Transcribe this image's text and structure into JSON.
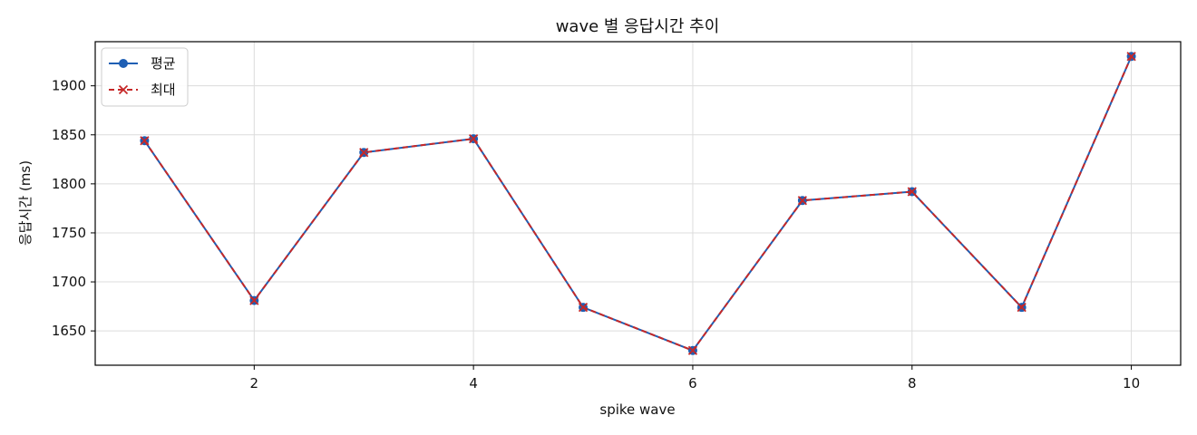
{
  "chart_data": {
    "type": "line",
    "title": "wave 별 응답시간 추이",
    "xlabel": "spike wave",
    "ylabel": "응답시간 (ms)",
    "x": [
      1,
      2,
      3,
      4,
      5,
      6,
      7,
      8,
      9,
      10
    ],
    "xlim": [
      0.55,
      10.45
    ],
    "ylim": [
      1615,
      1945
    ],
    "xticks": [
      2,
      4,
      6,
      8,
      10
    ],
    "yticks": [
      1650,
      1700,
      1750,
      1800,
      1850,
      1900
    ],
    "grid": true,
    "legend_position": "top-left",
    "series": [
      {
        "name": "평균",
        "color": "#1f5fb4",
        "line_style": "solid",
        "marker": "circle",
        "values": [
          1844,
          1681,
          1832,
          1846,
          1674,
          1630,
          1783,
          1792,
          1674,
          1930
        ]
      },
      {
        "name": "최대",
        "color": "#c62828",
        "line_style": "dashed",
        "marker": "x",
        "values": [
          1844,
          1681,
          1832,
          1846,
          1674,
          1630,
          1783,
          1792,
          1674,
          1930
        ]
      }
    ]
  }
}
